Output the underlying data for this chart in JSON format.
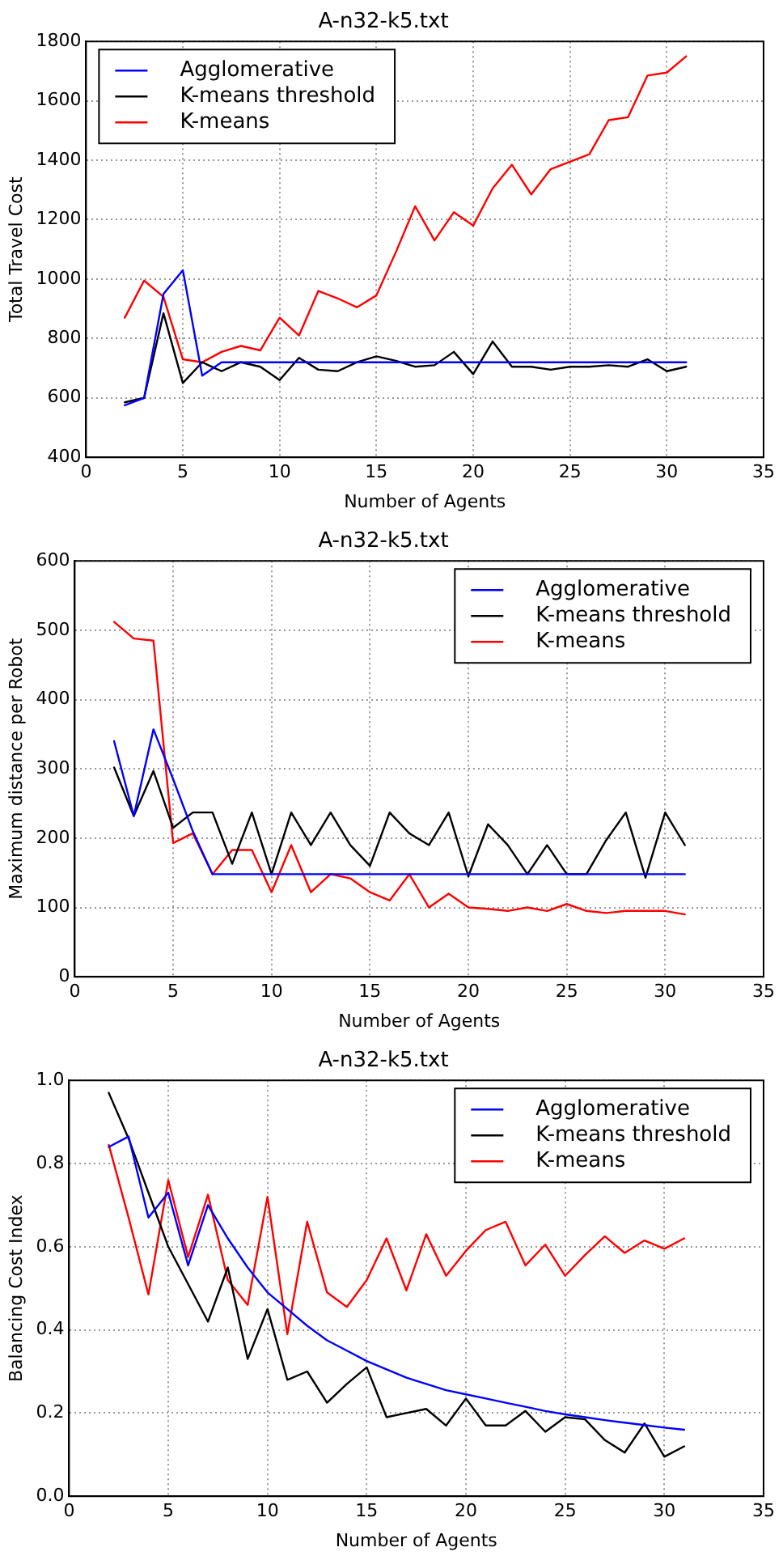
{
  "chart_data": [
    {
      "type": "line",
      "title": "A-n32-k5.txt",
      "xlabel": "Number of Agents",
      "ylabel": "Total Travel Cost",
      "x": [
        2,
        3,
        4,
        5,
        6,
        7,
        8,
        9,
        10,
        11,
        12,
        13,
        14,
        15,
        16,
        17,
        18,
        19,
        20,
        21,
        22,
        23,
        24,
        25,
        26,
        27,
        28,
        29,
        30,
        31
      ],
      "xlim": [
        0,
        35
      ],
      "xticks": [
        0,
        5,
        10,
        15,
        20,
        25,
        30,
        35
      ],
      "ylim": [
        400,
        1800
      ],
      "yticks": [
        400,
        600,
        800,
        1000,
        1200,
        1400,
        1600,
        1800
      ],
      "grid": true,
      "legend": "top left",
      "line_style": "solid",
      "marker": "none",
      "series": [
        {
          "name": "Agglomerative",
          "color": "#0000ff",
          "values": [
            575,
            600,
            950,
            1030,
            675,
            720,
            720,
            720,
            720,
            720,
            720,
            720,
            720,
            720,
            720,
            720,
            720,
            720,
            720,
            720,
            720,
            720,
            720,
            720,
            720,
            720,
            720,
            720,
            720,
            720
          ]
        },
        {
          "name": "K-means threshold",
          "color": "#000000",
          "values": [
            585,
            600,
            885,
            650,
            720,
            690,
            720,
            705,
            660,
            735,
            695,
            690,
            720,
            740,
            725,
            705,
            710,
            755,
            680,
            790,
            705,
            705,
            695,
            705,
            705,
            710,
            705,
            730,
            690,
            705
          ]
        },
        {
          "name": "K-means",
          "color": "#ff0000",
          "values": [
            870,
            995,
            940,
            730,
            720,
            755,
            775,
            760,
            870,
            810,
            960,
            935,
            905,
            945,
            1090,
            1245,
            1130,
            1225,
            1180,
            1305,
            1385,
            1285,
            1370,
            1395,
            1420,
            1535,
            1545,
            1685,
            1695,
            1750
          ]
        }
      ]
    },
    {
      "type": "line",
      "title": "A-n32-k5.txt",
      "xlabel": "Number of Agents",
      "ylabel": "Maximum distance per Robot",
      "x": [
        2,
        3,
        4,
        5,
        6,
        7,
        8,
        9,
        10,
        11,
        12,
        13,
        14,
        15,
        16,
        17,
        18,
        19,
        20,
        21,
        22,
        23,
        24,
        25,
        26,
        27,
        28,
        29,
        30,
        31
      ],
      "xlim": [
        0,
        35
      ],
      "xticks": [
        0,
        5,
        10,
        15,
        20,
        25,
        30,
        35
      ],
      "ylim": [
        0,
        600
      ],
      "yticks": [
        0,
        100,
        200,
        300,
        400,
        500,
        600
      ],
      "grid": true,
      "legend": "top right",
      "line_style": "solid",
      "marker": "none",
      "series": [
        {
          "name": "Agglomerative",
          "color": "#0000ff",
          "values": [
            340,
            232,
            357,
            285,
            210,
            148,
            148,
            148,
            148,
            148,
            148,
            148,
            148,
            148,
            148,
            148,
            148,
            148,
            148,
            148,
            148,
            148,
            148,
            148,
            148,
            148,
            148,
            148,
            148,
            148
          ]
        },
        {
          "name": "K-means threshold",
          "color": "#000000",
          "values": [
            302,
            232,
            297,
            215,
            237,
            237,
            163,
            237,
            148,
            237,
            190,
            237,
            190,
            160,
            237,
            207,
            190,
            237,
            145,
            220,
            190,
            148,
            190,
            148,
            148,
            197,
            237,
            143,
            237,
            190
          ]
        },
        {
          "name": "K-means",
          "color": "#ff0000",
          "values": [
            512,
            488,
            485,
            193,
            207,
            148,
            183,
            183,
            122,
            190,
            122,
            148,
            142,
            122,
            110,
            148,
            100,
            120,
            100,
            98,
            95,
            100,
            95,
            105,
            95,
            92,
            95,
            95,
            95,
            90
          ]
        }
      ]
    },
    {
      "type": "line",
      "title": "A-n32-k5.txt",
      "xlabel": "Number of Agents",
      "ylabel": "Balancing Cost Index",
      "x": [
        2,
        3,
        4,
        5,
        6,
        7,
        8,
        9,
        10,
        11,
        12,
        13,
        14,
        15,
        16,
        17,
        18,
        19,
        20,
        21,
        22,
        23,
        24,
        25,
        26,
        27,
        28,
        29,
        30,
        31
      ],
      "xlim": [
        0,
        35
      ],
      "xticks": [
        0,
        5,
        10,
        15,
        20,
        25,
        30,
        35
      ],
      "ylim": [
        0,
        1
      ],
      "yticks": [
        {
          "value": 0,
          "label": "0.0"
        },
        {
          "value": 0.2,
          "label": "0.2"
        },
        {
          "value": 0.4,
          "label": "0.4"
        },
        {
          "value": 0.6,
          "label": "0.6"
        },
        {
          "value": 0.8,
          "label": "0.8"
        },
        {
          "value": 1,
          "label": "1.0"
        }
      ],
      "grid": true,
      "legend": "top right",
      "line_style": "solid",
      "marker": "none",
      "series": [
        {
          "name": "Agglomerative",
          "color": "#0000ff",
          "values": [
            0.84,
            0.865,
            0.67,
            0.73,
            0.555,
            0.7,
            0.62,
            0.55,
            0.49,
            0.45,
            0.41,
            0.375,
            0.35,
            0.325,
            0.305,
            0.285,
            0.27,
            0.255,
            0.245,
            0.235,
            0.225,
            0.215,
            0.205,
            0.197,
            0.19,
            0.183,
            0.177,
            0.171,
            0.165,
            0.16
          ]
        },
        {
          "name": "K-means threshold",
          "color": "#000000",
          "values": [
            0.97,
            0.86,
            0.73,
            0.6,
            0.51,
            0.42,
            0.55,
            0.33,
            0.45,
            0.28,
            0.3,
            0.225,
            0.27,
            0.31,
            0.19,
            0.2,
            0.21,
            0.17,
            0.235,
            0.17,
            0.17,
            0.205,
            0.155,
            0.19,
            0.185,
            0.135,
            0.105,
            0.175,
            0.095,
            0.12
          ]
        },
        {
          "name": "K-means",
          "color": "#ff0000",
          "values": [
            0.845,
            0.67,
            0.485,
            0.76,
            0.575,
            0.725,
            0.52,
            0.46,
            0.72,
            0.39,
            0.66,
            0.49,
            0.455,
            0.52,
            0.62,
            0.495,
            0.63,
            0.53,
            0.59,
            0.64,
            0.66,
            0.555,
            0.605,
            0.53,
            0.58,
            0.625,
            0.585,
            0.615,
            0.595,
            0.62
          ]
        }
      ]
    }
  ]
}
